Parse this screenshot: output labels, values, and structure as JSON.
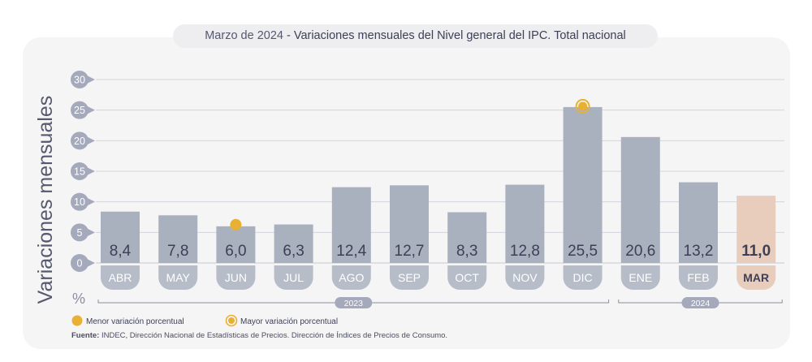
{
  "title": {
    "period": "Marzo de 2024",
    "separator": " - ",
    "text": "Variaciones mensuales del Nivel general del IPC. Total nacional"
  },
  "legend": {
    "min_label": "Menor variación porcentual",
    "max_label": "Mayor variación porcentual"
  },
  "source": {
    "label": "Fuente:",
    "text": "INDEC, Dirección Nacional de Estadísticas de Precios. Dirección de Índices de Precios de Consumo."
  },
  "colors": {
    "bar": "#a9b1bf",
    "bar_highlight": "#e8cdbd",
    "label_pill": "#b7bcc9",
    "label_pill_highlight": "#e8cdbd",
    "marker": "#e8b133",
    "axis_circle": "#a4a9bc",
    "text_dark": "#3d3f56"
  },
  "chart_data": {
    "type": "bar",
    "ylabel": "Variaciones mensuales",
    "yunit": "%",
    "ylim": [
      0,
      30
    ],
    "yticks": [
      0,
      5,
      10,
      15,
      20,
      25,
      30
    ],
    "grid": true,
    "categories": [
      "ABR",
      "MAY",
      "JUN",
      "JUL",
      "AGO",
      "SEP",
      "OCT",
      "NOV",
      "DIC",
      "ENE",
      "FEB",
      "MAR"
    ],
    "value_labels": [
      "8,4",
      "7,8",
      "6,0",
      "6,3",
      "12,4",
      "12,7",
      "8,3",
      "12,8",
      "25,5",
      "20,6",
      "13,2",
      "11,0"
    ],
    "values": [
      8.4,
      7.8,
      6.0,
      6.3,
      12.4,
      12.7,
      8.3,
      12.8,
      25.5,
      20.6,
      13.2,
      11.0
    ],
    "highlight_index": 11,
    "min_index": 2,
    "max_index": 8,
    "year_groups": [
      {
        "label": "2023",
        "start": 0,
        "end": 8
      },
      {
        "label": "2024",
        "start": 9,
        "end": 11
      }
    ]
  }
}
